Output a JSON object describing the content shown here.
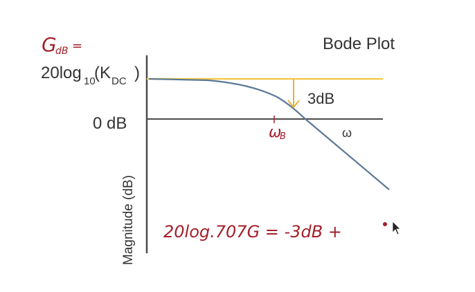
{
  "title": "Bode Plot",
  "handwritten_label_g": "G",
  "handwritten_label_g_sub": "dB",
  "handwritten_label_eq": "=",
  "label_20log": "20log",
  "label_20log_sub": "10",
  "label_kdc": "K",
  "label_kdc_sub": "DC",
  "label_0db": "0 dB",
  "label_3db": "3dB",
  "label_omega": "ω",
  "label_omega_b": "ω",
  "label_omega_b_sub": "B",
  "axis_ylabel": "Magnitude (dB)",
  "handwritten_equation": "20log.707G = -3dB +",
  "colors": {
    "axis": "#4a4a4a",
    "dc_line": "#f2c94c",
    "arrow": "#e6b33a",
    "curve": "#5a7896",
    "handwriting": "#a3202a",
    "text": "#333333"
  }
}
